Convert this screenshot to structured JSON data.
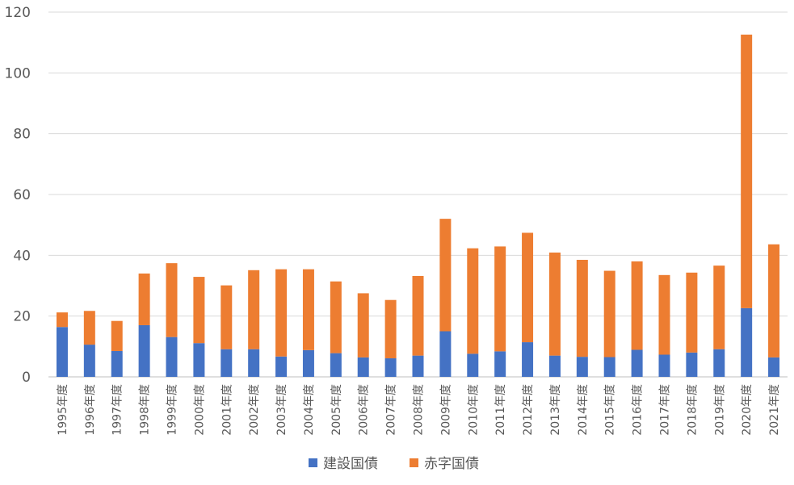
{
  "chart_data": {
    "type": "bar",
    "stacked": true,
    "categories": [
      "1995年度",
      "1996年度",
      "1997年度",
      "1998年度",
      "1999年度",
      "2000年度",
      "2001年度",
      "2002年度",
      "2003年度",
      "2004年度",
      "2005年度",
      "2006年度",
      "2007年度",
      "2008年度",
      "2009年度",
      "2010年度",
      "2011年度",
      "2012年度",
      "2013年度",
      "2014年度",
      "2015年度",
      "2016年度",
      "2017年度",
      "2018年度",
      "2019年度",
      "2020年度",
      "2021年度"
    ],
    "series": [
      {
        "name": "建設国債",
        "color": "#4472C4",
        "values": [
          16.4,
          10.6,
          8.5,
          17.0,
          13.1,
          11.1,
          9.1,
          9.1,
          6.7,
          8.8,
          7.8,
          6.4,
          6.1,
          7.0,
          15.0,
          7.6,
          8.4,
          11.4,
          7.0,
          6.6,
          6.5,
          8.9,
          7.3,
          8.0,
          9.1,
          22.6,
          6.4
        ]
      },
      {
        "name": "赤字国債",
        "color": "#ED7D31",
        "values": [
          4.8,
          11.1,
          9.9,
          17.0,
          24.3,
          21.8,
          21.0,
          26.0,
          28.7,
          26.6,
          23.6,
          21.1,
          19.2,
          26.2,
          37.0,
          34.7,
          34.5,
          36.0,
          33.9,
          31.9,
          28.4,
          29.1,
          26.2,
          26.3,
          27.5,
          90.0,
          37.2
        ]
      }
    ],
    "ylim": [
      0,
      120
    ],
    "yticks": [
      0,
      20,
      40,
      60,
      80,
      100,
      120
    ],
    "grid": true,
    "legend": "bottom"
  }
}
